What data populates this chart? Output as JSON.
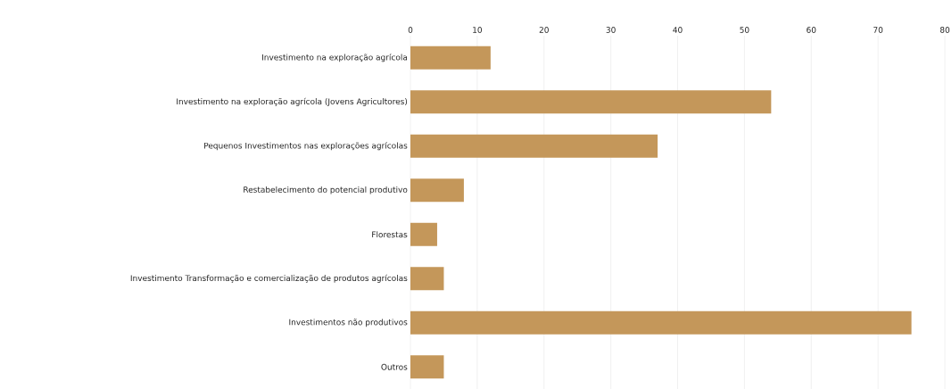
{
  "chart_data": {
    "type": "bar",
    "orientation": "horizontal",
    "color": "#c4975a",
    "grid": "x",
    "categories": [
      "Investimento na exploração agrícola",
      "Investimento na exploração agrícola (Jovens Agricultores)",
      "Pequenos Investimentos nas explorações agrícolas",
      "Restabelecimento do potencial produtivo",
      "Florestas",
      "Investimento Transformação e comercialização de produtos agrícolas",
      "Investimentos não produtivos",
      "Outros"
    ],
    "values": [
      12,
      54,
      37,
      8,
      4,
      5,
      75,
      5
    ],
    "xlim": [
      0,
      80
    ],
    "xticks": [
      0,
      10,
      20,
      30,
      40,
      50,
      60,
      70,
      80
    ]
  }
}
